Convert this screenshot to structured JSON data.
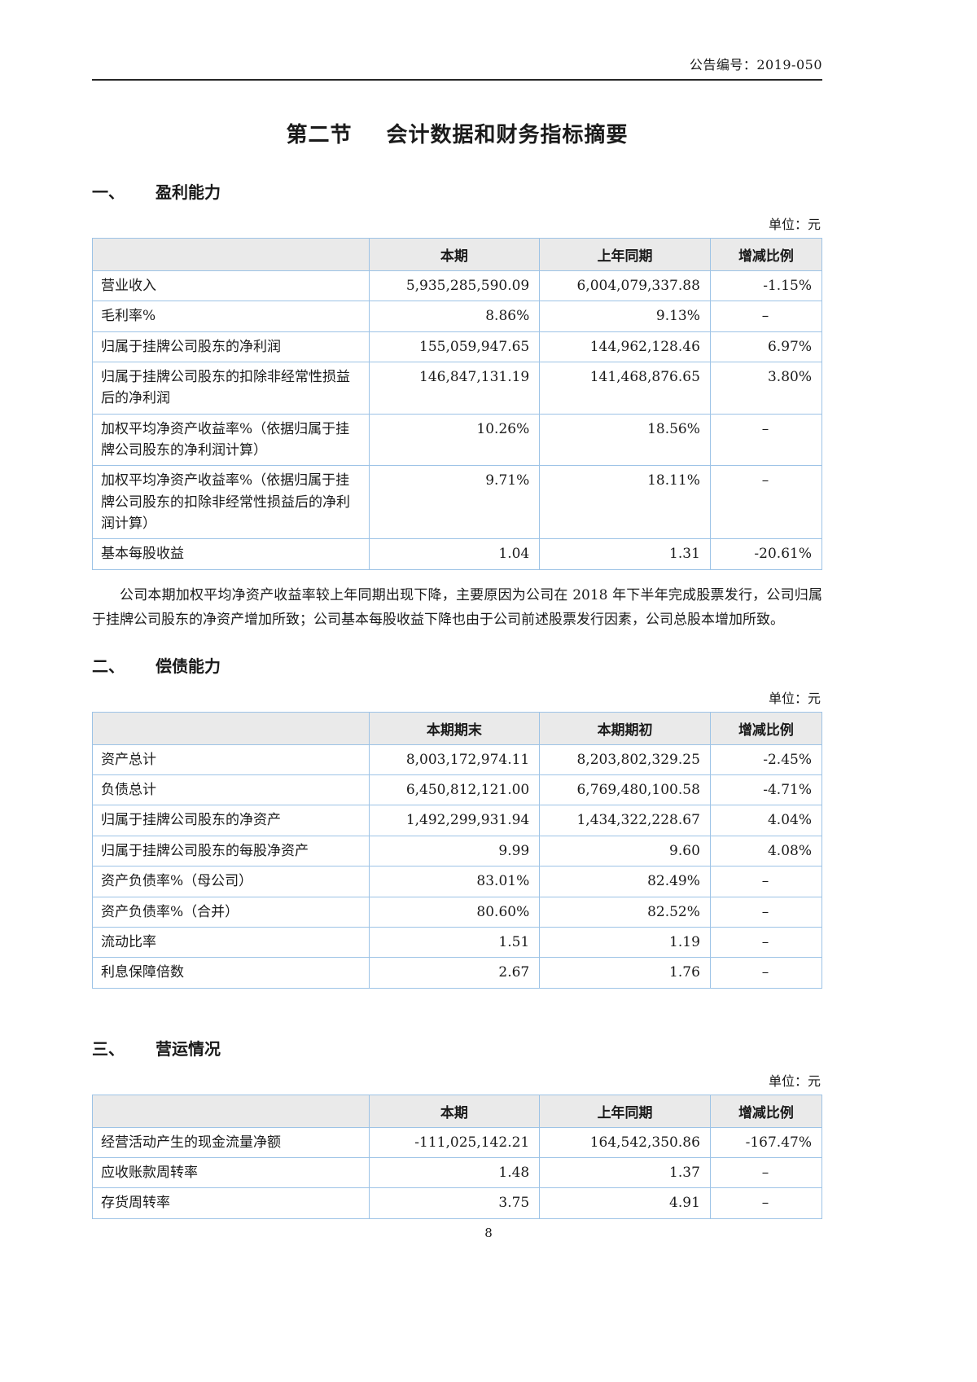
{
  "page": {
    "doc_number": "公告编号：2019-050",
    "title_prefix": "第二节",
    "title_text": "会计数据和财务指标摘要",
    "page_number": "8"
  },
  "sections": [
    {
      "no": "一、",
      "title": "盈利能力",
      "unit": "单位：元",
      "table": {
        "headers": [
          "",
          "本期",
          "上年同期",
          "增减比例"
        ],
        "rows": [
          [
            "营业收入",
            "5,935,285,590.09",
            "6,004,079,337.88",
            "-1.15%"
          ],
          [
            "毛利率%",
            "8.86%",
            "9.13%",
            "–"
          ],
          [
            "归属于挂牌公司股东的净利润",
            "155,059,947.65",
            "144,962,128.46",
            "6.97%"
          ],
          [
            "归属于挂牌公司股东的扣除非经常性损益后的净利润",
            "146,847,131.19",
            "141,468,876.65",
            "3.80%"
          ],
          [
            "加权平均净资产收益率%（依据归属于挂牌公司股东的净利润计算）",
            "10.26%",
            "18.56%",
            "–"
          ],
          [
            "加权平均净资产收益率%（依据归属于挂牌公司股东的扣除非经常性损益后的净利润计算）",
            "9.71%",
            "18.11%",
            "–"
          ],
          [
            "基本每股收益",
            "1.04",
            "1.31",
            "-20.61%"
          ]
        ]
      },
      "note": "公司本期加权平均净资产收益率较上年同期出现下降，主要原因为公司在 2018 年下半年完成股票发行，公司归属于挂牌公司股东的净资产增加所致；公司基本每股收益下降也由于公司前述股票发行因素，公司总股本增加所致。"
    },
    {
      "no": "二、",
      "title": "偿债能力",
      "unit": "单位：元",
      "table": {
        "headers": [
          "",
          "本期期末",
          "本期期初",
          "增减比例"
        ],
        "rows": [
          [
            "资产总计",
            "8,003,172,974.11",
            "8,203,802,329.25",
            "-2.45%"
          ],
          [
            "负债总计",
            "6,450,812,121.00",
            "6,769,480,100.58",
            "-4.71%"
          ],
          [
            "归属于挂牌公司股东的净资产",
            "1,492,299,931.94",
            "1,434,322,228.67",
            "4.04%"
          ],
          [
            "归属于挂牌公司股东的每股净资产",
            "9.99",
            "9.60",
            "4.08%"
          ],
          [
            "资产负债率%（母公司）",
            "83.01%",
            "82.49%",
            "–"
          ],
          [
            "资产负债率%（合并）",
            "80.60%",
            "82.52%",
            "–"
          ],
          [
            "流动比率",
            "1.51",
            "1.19",
            "–"
          ],
          [
            "利息保障倍数",
            "2.67",
            "1.76",
            "–"
          ]
        ]
      },
      "note": ""
    },
    {
      "no": "三、",
      "title": "营运情况",
      "unit": "单位：元",
      "table": {
        "headers": [
          "",
          "本期",
          "上年同期",
          "增减比例"
        ],
        "rows": [
          [
            "经营活动产生的现金流量净额",
            "-111,025,142.21",
            "164,542,350.86",
            "-167.47%"
          ],
          [
            "应收账款周转率",
            "1.48",
            "1.37",
            "–"
          ],
          [
            "存货周转率",
            "3.75",
            "4.91",
            "–"
          ]
        ]
      },
      "note": ""
    }
  ]
}
